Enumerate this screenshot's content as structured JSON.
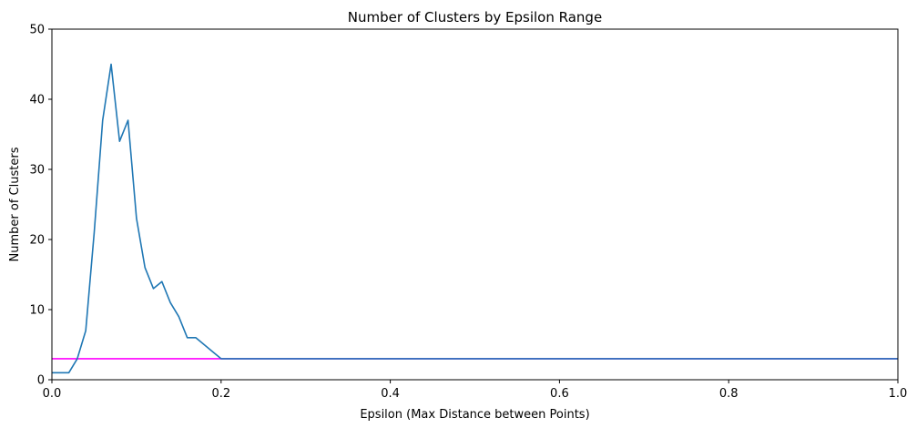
{
  "chart_data": {
    "type": "line",
    "title": "Number of Clusters by Epsilon Range",
    "xlabel": "Epsilon (Max Distance between Points)",
    "ylabel": "Number of Clusters",
    "xlim": [
      0,
      1.0
    ],
    "ylim": [
      0,
      50
    ],
    "xticks": [
      "0.0",
      "0.2",
      "0.4",
      "0.6",
      "0.8",
      "1.0"
    ],
    "yticks": [
      "0",
      "10",
      "20",
      "30",
      "40",
      "50"
    ],
    "grid": false,
    "series": [
      {
        "color": "#1f77b4",
        "x": [
          0.0,
          0.01,
          0.02,
          0.03,
          0.04,
          0.05,
          0.06,
          0.07,
          0.08,
          0.09,
          0.1,
          0.11,
          0.12,
          0.13,
          0.14,
          0.15,
          0.16,
          0.17,
          0.18,
          0.19,
          0.2,
          0.3,
          0.4,
          0.5,
          0.6,
          0.7,
          0.8,
          0.9,
          1.0
        ],
        "y": [
          1,
          1,
          1,
          3,
          7,
          21,
          37,
          45,
          34,
          37,
          23,
          16,
          13,
          14,
          11,
          9,
          6,
          6,
          5,
          4,
          3,
          3,
          3,
          3,
          3,
          3,
          3,
          3,
          3
        ]
      },
      {
        "color": "#ff00ff",
        "x": [
          0.0,
          1.0
        ],
        "y": [
          3,
          3
        ]
      }
    ]
  }
}
